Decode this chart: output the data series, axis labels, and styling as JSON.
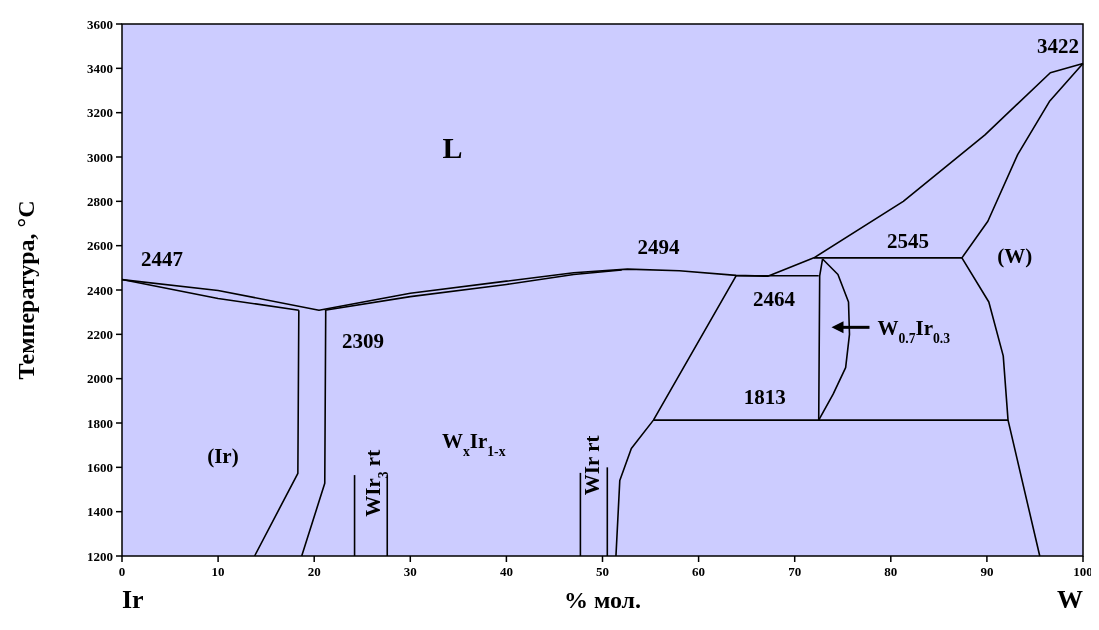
{
  "chart_data": {
    "type": "line",
    "xlabel": "% мол.",
    "ylabel": "Температура, °C",
    "xlim": [
      0,
      100
    ],
    "ylim": [
      1200,
      3600
    ],
    "xticks": [
      0,
      10,
      20,
      30,
      40,
      50,
      60,
      70,
      80,
      90,
      100
    ],
    "yticks": [
      1200,
      1400,
      1600,
      1800,
      2000,
      2200,
      2400,
      2600,
      2800,
      3000,
      3200,
      3400,
      3600
    ],
    "marker": "none",
    "line_style": "solid",
    "series": [
      {
        "color": "#000000",
        "x": [
          0,
          10,
          20.5,
          30,
          40,
          47,
          52.6,
          58,
          63.9,
          67.2,
          72,
          81.3,
          89.8,
          96.6,
          100
        ],
        "values": [
          2447,
          2398,
          2309,
          2385,
          2440,
          2478,
          2494,
          2487,
          2466,
          2462,
          2545,
          2800,
          3100,
          3380,
          3422
        ]
      },
      {
        "color": "#000000",
        "x": [
          0,
          10,
          18.4
        ],
        "values": [
          2447,
          2362,
          2309
        ]
      },
      {
        "color": "#000000",
        "x": [
          21.1,
          30,
          40,
          47,
          52
        ],
        "values": [
          2309,
          2370,
          2425,
          2470,
          2490
        ]
      },
      {
        "color": "#000000",
        "x": [
          100,
          96.5,
          93.2,
          90.1,
          87.4,
          90.2,
          91.7,
          92.2,
          95.5
        ],
        "values": [
          3422,
          3250,
          3011,
          2710,
          2545,
          2346,
          2103,
          1813,
          1200
        ]
      },
      {
        "color": "#000000",
        "x": [
          72,
          87.4
        ],
        "values": [
          2545,
          2545
        ]
      },
      {
        "color": "#000000",
        "x": [
          55.3,
          92.2
        ],
        "values": [
          1813,
          1813
        ]
      },
      {
        "color": "#000000",
        "x": [
          63.9,
          72.5
        ],
        "values": [
          2464,
          2464
        ]
      },
      {
        "color": "#000000",
        "x": [
          51.4,
          51.8,
          53,
          55.3,
          63.9
        ],
        "values": [
          1200,
          1541,
          1685,
          1813,
          2464
        ]
      },
      {
        "color": "#000000",
        "x": [
          72.5,
          72.6,
          72.9
        ],
        "values": [
          1813,
          2464,
          2540
        ]
      },
      {
        "color": "#000000",
        "x": [
          72.5,
          74,
          75.3,
          75.7,
          75.6,
          74.5,
          72.9
        ],
        "values": [
          1813,
          1930,
          2050,
          2200,
          2346,
          2470,
          2540
        ]
      },
      {
        "color": "#000000",
        "x": [
          13.8,
          18.3,
          18.4
        ],
        "values": [
          1200,
          1573,
          2309
        ]
      },
      {
        "color": "#000000",
        "x": [
          18.7,
          21.1,
          21.2
        ],
        "values": [
          1200,
          1528,
          2309
        ]
      },
      {
        "color": "#000000",
        "x": [
          24.2,
          24.2
        ],
        "values": [
          1200,
          1565
        ]
      },
      {
        "color": "#000000",
        "x": [
          27.6,
          27.6
        ],
        "values": [
          1200,
          1565
        ]
      },
      {
        "color": "#000000",
        "x": [
          47.7,
          47.7
        ],
        "values": [
          1200,
          1575
        ]
      },
      {
        "color": "#000000",
        "x": [
          50.5,
          50.5
        ],
        "values": [
          1200,
          1600
        ]
      }
    ],
    "annotations": [
      "L",
      "(W)",
      "(Ir)",
      "W$_{x}$Ir$_{1-x}$",
      "WIr$_{3}$ rt",
      "WIr rt",
      {
        "text": "Ir",
        "x": 0
      },
      {
        "text": "W",
        "x": 100
      },
      {
        "text": "2447",
        "x": 0,
        "y": 2447
      },
      {
        "text": "2309",
        "x": 20.5,
        "y": 2309
      },
      {
        "text": "2494",
        "x": 52.6,
        "y": 2494
      },
      {
        "text": "2464",
        "x": 63.9,
        "y": 2464
      },
      {
        "text": "1813",
        "x": 72.5,
        "y": 1813
      },
      {
        "text": "2545",
        "x": 87.4,
        "y": 2545
      },
      {
        "text": "3422",
        "x": 100,
        "y": 3422
      },
      {
        "text": "W$_{0.7}$Ir$_{0.3}$",
        "x": 75.7,
        "y": 2200
      }
    ]
  }
}
